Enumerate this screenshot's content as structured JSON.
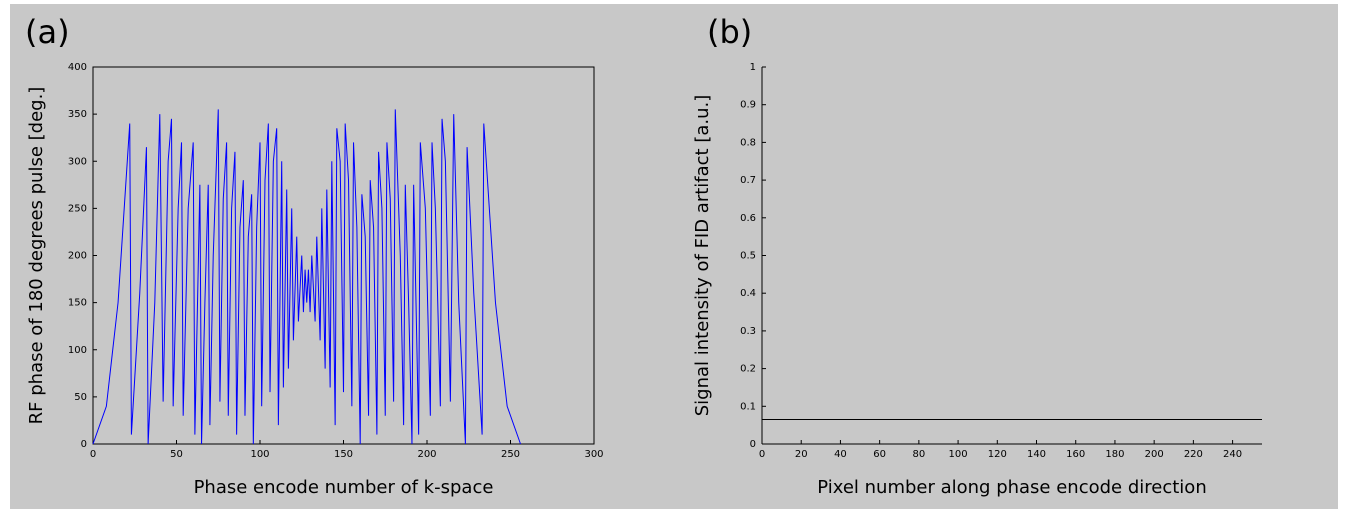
{
  "chart_data": [
    {
      "type": "line",
      "panel": "(a)",
      "xlabel": "Phase encode number of k-space",
      "ylabel": "RF phase of 180 degrees pulse [deg.]",
      "xlim": [
        0,
        300
      ],
      "ylim": [
        0,
        400
      ],
      "xticks": [
        0,
        50,
        100,
        150,
        200,
        250,
        300
      ],
      "yticks": [
        0,
        50,
        100,
        150,
        200,
        250,
        300,
        350,
        400
      ],
      "box": true,
      "series": [
        {
          "color": "#0000ff",
          "x": [
            0,
            8,
            15,
            22,
            23,
            28,
            32,
            33,
            37,
            40,
            42,
            45,
            47,
            48,
            51,
            53,
            54,
            57,
            60,
            61,
            64,
            65,
            67,
            69,
            70,
            72,
            75,
            76,
            78,
            80,
            81,
            83,
            85,
            86,
            88,
            90,
            91,
            93,
            95,
            96,
            98,
            100,
            101,
            103,
            105,
            106,
            108,
            110,
            111,
            113,
            114,
            116,
            117,
            119,
            120,
            122,
            123,
            125,
            126,
            127,
            128,
            129,
            130,
            131,
            133,
            134,
            136,
            137,
            139,
            140,
            142,
            143,
            145,
            146,
            148,
            150,
            151,
            153,
            155,
            156,
            158,
            160,
            161,
            163,
            165,
            166,
            168,
            170,
            171,
            173,
            175,
            176,
            178,
            180,
            181,
            184,
            186,
            187,
            189,
            191,
            192,
            195,
            196,
            199,
            202,
            203,
            205,
            208,
            209,
            211,
            214,
            216,
            219,
            223,
            224,
            228,
            233,
            234,
            241,
            248,
            256
          ],
          "values": [
            0,
            40,
            150,
            340,
            10,
            160,
            315,
            0,
            150,
            350,
            45,
            300,
            345,
            40,
            250,
            320,
            30,
            250,
            320,
            10,
            275,
            0,
            150,
            275,
            20,
            200,
            355,
            45,
            260,
            320,
            30,
            250,
            310,
            10,
            230,
            280,
            30,
            220,
            265,
            0,
            230,
            320,
            40,
            280,
            340,
            55,
            300,
            335,
            20,
            300,
            60,
            270,
            80,
            250,
            110,
            220,
            130,
            200,
            140,
            185,
            150,
            185,
            140,
            200,
            130,
            220,
            110,
            250,
            80,
            270,
            60,
            300,
            20,
            335,
            300,
            55,
            340,
            280,
            40,
            320,
            230,
            0,
            265,
            220,
            30,
            280,
            230,
            10,
            310,
            250,
            30,
            320,
            260,
            45,
            355,
            200,
            20,
            275,
            150,
            0,
            275,
            10,
            320,
            250,
            30,
            320,
            250,
            40,
            345,
            300,
            45,
            350,
            150,
            0,
            315,
            160,
            10,
            340,
            150,
            40,
            0
          ]
        }
      ]
    },
    {
      "type": "line",
      "panel": "(b)",
      "xlabel": "Pixel number along phase encode direction",
      "ylabel": "Signal intensity of FID artifact [a.u.]",
      "xlim": [
        0,
        255
      ],
      "ylim": [
        0,
        1
      ],
      "xticks": [
        0,
        20,
        40,
        60,
        80,
        100,
        120,
        140,
        160,
        180,
        200,
        220,
        240
      ],
      "yticks": [
        0,
        0.1,
        0.2,
        0.3,
        0.4,
        0.5,
        0.6,
        0.7,
        0.8,
        0.9,
        1
      ],
      "box": false,
      "series": [
        {
          "color": "#000000",
          "x": [
            0,
            255
          ],
          "values": [
            0.065,
            0.065
          ]
        }
      ]
    }
  ]
}
